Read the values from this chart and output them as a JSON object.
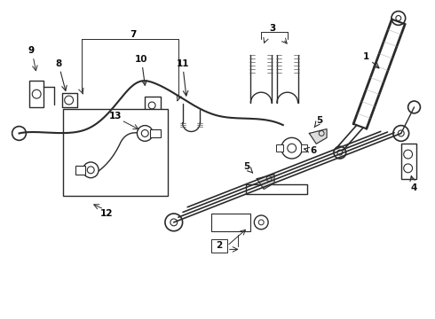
{
  "background_color": "#ffffff",
  "line_color": "#2a2a2a",
  "fig_width": 4.9,
  "fig_height": 3.6,
  "dpi": 100
}
